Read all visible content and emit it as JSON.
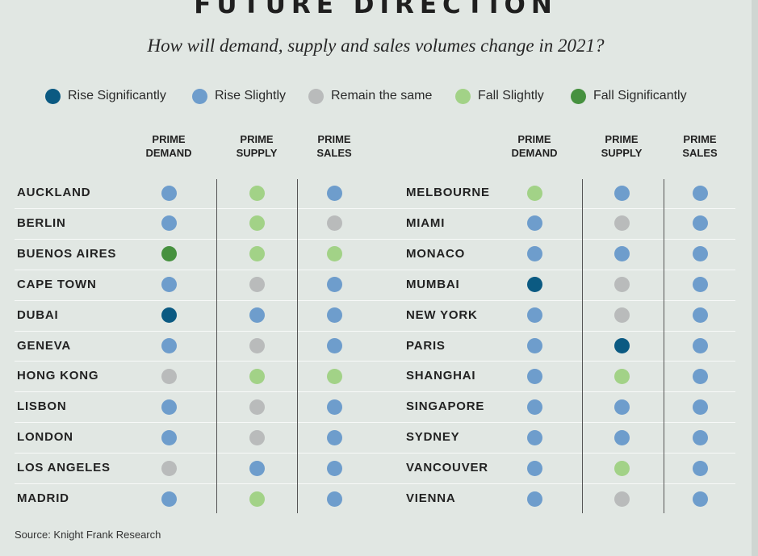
{
  "title": "FUTURE DIRECTION",
  "subtitle": "How will demand, supply and sales volumes change in 2021?",
  "source": "Source: Knight Frank Research",
  "colors": {
    "rise_significantly": "#0b5a82",
    "rise_slightly": "#6e9dcc",
    "remain": "#b9bbbb",
    "fall_slightly": "#a2d287",
    "fall_significantly": "#46913f"
  },
  "chart_data": {
    "type": "table",
    "legend": [
      {
        "key": "rise_significantly",
        "label": "Rise Significantly"
      },
      {
        "key": "rise_slightly",
        "label": "Rise Slightly"
      },
      {
        "key": "remain",
        "label": "Remain the same"
      },
      {
        "key": "fall_slightly",
        "label": "Fall Slightly"
      },
      {
        "key": "fall_significantly",
        "label": "Fall Significantly"
      }
    ],
    "columns": [
      {
        "line1": "PRIME",
        "line2": "DEMAND"
      },
      {
        "line1": "PRIME",
        "line2": "SUPPLY"
      },
      {
        "line1": "PRIME",
        "line2": "SALES"
      }
    ],
    "left_rows": [
      {
        "city": "AUCKLAND",
        "values": [
          "rise_slightly",
          "fall_slightly",
          "rise_slightly"
        ]
      },
      {
        "city": "BERLIN",
        "values": [
          "rise_slightly",
          "fall_slightly",
          "remain"
        ]
      },
      {
        "city": "BUENOS AIRES",
        "values": [
          "fall_significantly",
          "fall_slightly",
          "fall_slightly"
        ]
      },
      {
        "city": "CAPE TOWN",
        "values": [
          "rise_slightly",
          "remain",
          "rise_slightly"
        ]
      },
      {
        "city": "DUBAI",
        "values": [
          "rise_significantly",
          "rise_slightly",
          "rise_slightly"
        ]
      },
      {
        "city": "GENEVA",
        "values": [
          "rise_slightly",
          "remain",
          "rise_slightly"
        ]
      },
      {
        "city": "HONG KONG",
        "values": [
          "remain",
          "fall_slightly",
          "fall_slightly"
        ]
      },
      {
        "city": "LISBON",
        "values": [
          "rise_slightly",
          "remain",
          "rise_slightly"
        ]
      },
      {
        "city": "LONDON",
        "values": [
          "rise_slightly",
          "remain",
          "rise_slightly"
        ]
      },
      {
        "city": "LOS ANGELES",
        "values": [
          "remain",
          "rise_slightly",
          "rise_slightly"
        ]
      },
      {
        "city": "MADRID",
        "values": [
          "rise_slightly",
          "fall_slightly",
          "rise_slightly"
        ]
      }
    ],
    "right_rows": [
      {
        "city": "MELBOURNE",
        "values": [
          "fall_slightly",
          "rise_slightly",
          "rise_slightly"
        ]
      },
      {
        "city": "MIAMI",
        "values": [
          "rise_slightly",
          "remain",
          "rise_slightly"
        ]
      },
      {
        "city": "MONACO",
        "values": [
          "rise_slightly",
          "rise_slightly",
          "rise_slightly"
        ]
      },
      {
        "city": "MUMBAI",
        "values": [
          "rise_significantly",
          "remain",
          "rise_slightly"
        ]
      },
      {
        "city": "NEW YORK",
        "values": [
          "rise_slightly",
          "remain",
          "rise_slightly"
        ]
      },
      {
        "city": "PARIS",
        "values": [
          "rise_slightly",
          "rise_significantly",
          "rise_slightly"
        ]
      },
      {
        "city": "SHANGHAI",
        "values": [
          "rise_slightly",
          "fall_slightly",
          "rise_slightly"
        ]
      },
      {
        "city": "SINGAPORE",
        "values": [
          "rise_slightly",
          "rise_slightly",
          "rise_slightly"
        ]
      },
      {
        "city": "SYDNEY",
        "values": [
          "rise_slightly",
          "rise_slightly",
          "rise_slightly"
        ]
      },
      {
        "city": "VANCOUVER",
        "values": [
          "rise_slightly",
          "fall_slightly",
          "rise_slightly"
        ]
      },
      {
        "city": "VIENNA",
        "values": [
          "rise_slightly",
          "remain",
          "rise_slightly"
        ]
      }
    ]
  }
}
